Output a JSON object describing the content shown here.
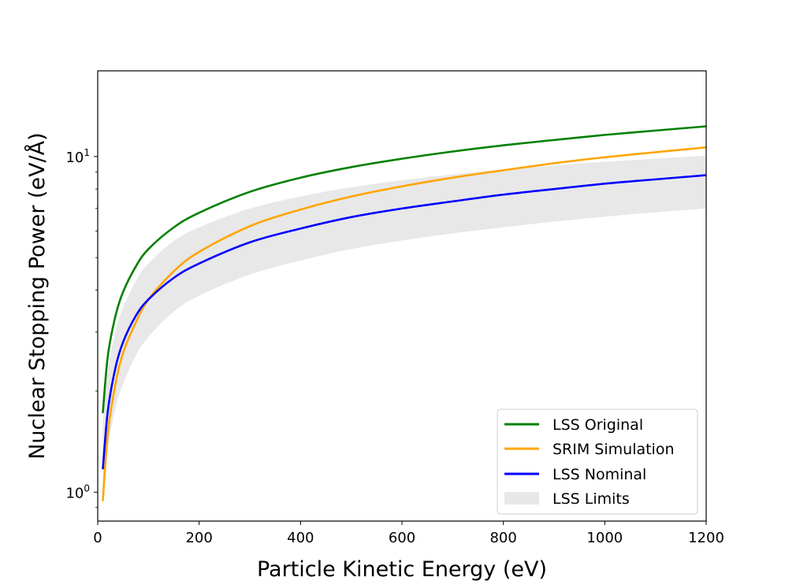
{
  "chart_data": {
    "type": "line",
    "xlabel": "Particle Kinetic Energy (eV)",
    "ylabel": "Nuclear Stopping Power (eV/Å)",
    "xlim": [
      0,
      1200
    ],
    "ylim": [
      0.82,
      18.0
    ],
    "yscale": "log",
    "x_ticks": [
      0,
      200,
      400,
      600,
      800,
      1000,
      1200
    ],
    "x_tick_labels": [
      "0",
      "200",
      "400",
      "600",
      "800",
      "1000",
      "1200"
    ],
    "y_ticks": [
      1,
      10
    ],
    "y_tick_labels": [
      {
        "base": "10",
        "exp": "0"
      },
      {
        "base": "10",
        "exp": "1"
      }
    ],
    "legend_position": "lower-right",
    "x": [
      10,
      20,
      35,
      50,
      75,
      100,
      150,
      200,
      300,
      400,
      500,
      600,
      700,
      800,
      900,
      1000,
      1100,
      1200
    ],
    "series": [
      {
        "name": "LSS Original",
        "color": "#008000",
        "values": [
          1.72,
          2.55,
          3.35,
          3.95,
          4.7,
          5.3,
          6.15,
          6.8,
          7.85,
          8.65,
          9.3,
          9.85,
          10.35,
          10.8,
          11.2,
          11.6,
          11.95,
          12.3
        ]
      },
      {
        "name": "SRIM Simulation",
        "color": "#ffa500",
        "values": [
          0.94,
          1.5,
          2.1,
          2.6,
          3.2,
          3.75,
          4.55,
          5.2,
          6.2,
          6.95,
          7.6,
          8.15,
          8.65,
          9.1,
          9.55,
          9.95,
          10.3,
          10.65
        ]
      },
      {
        "name": "LSS Nominal",
        "color": "#0000ff",
        "values": [
          1.17,
          1.75,
          2.35,
          2.8,
          3.35,
          3.75,
          4.35,
          4.8,
          5.55,
          6.1,
          6.6,
          7.0,
          7.35,
          7.7,
          8.0,
          8.3,
          8.55,
          8.8
        ]
      }
    ],
    "band": {
      "name": "LSS Limits",
      "color": "#e8e8e8",
      "x": [
        10,
        20,
        35,
        50,
        75,
        100,
        150,
        200,
        300,
        400,
        500,
        600,
        700,
        800,
        900,
        1000,
        1100,
        1200
      ],
      "lower": [
        0.98,
        1.35,
        1.78,
        2.1,
        2.55,
        2.9,
        3.45,
        3.85,
        4.45,
        4.9,
        5.3,
        5.62,
        5.9,
        6.15,
        6.4,
        6.62,
        6.82,
        7.0
      ],
      "upper": [
        1.6,
        2.3,
        3.0,
        3.55,
        4.25,
        4.8,
        5.6,
        6.15,
        7.0,
        7.6,
        8.1,
        8.5,
        8.85,
        9.15,
        9.4,
        9.65,
        9.85,
        10.05
      ]
    }
  }
}
